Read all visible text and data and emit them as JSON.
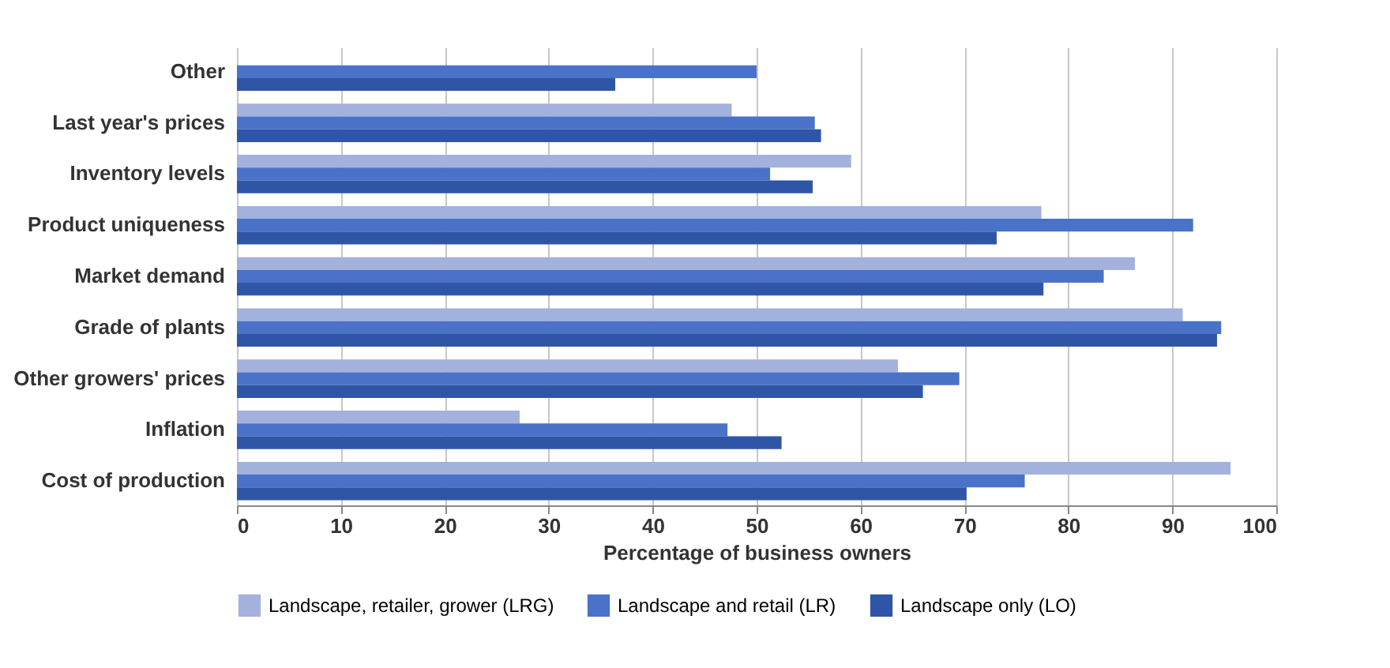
{
  "chart_data": {
    "type": "bar",
    "orientation": "horizontal",
    "xlabel": "Percentage of business owners",
    "categories": [
      "Other",
      "Last year's prices",
      "Inventory levels",
      "Product uniqueness",
      "Market demand",
      "Grade of plants",
      "Other growers' prices",
      "Inflation",
      "Cost of production"
    ],
    "series": [
      {
        "name": "Landscape, retailer, grower (LRG)",
        "color": "#a3b1dd",
        "values": [
          null,
          47.6,
          59.1,
          77.4,
          86.4,
          91.0,
          63.6,
          27.2,
          95.6
        ]
      },
      {
        "name": "Landscape and retail (LR)",
        "color": "#4a72c8",
        "values": [
          50.0,
          55.6,
          51.3,
          92.0,
          83.4,
          94.7,
          69.5,
          47.2,
          75.8
        ]
      },
      {
        "name": "Landscape only (LO)",
        "color": "#2f56a6",
        "values": [
          36.4,
          56.2,
          55.4,
          73.1,
          77.6,
          94.3,
          66.0,
          52.4,
          70.2
        ]
      }
    ],
    "xlim": [
      0,
      100
    ],
    "xticks": [
      0,
      10,
      20,
      30,
      40,
      50,
      60,
      70,
      80,
      90,
      100
    ],
    "grid": "x",
    "legend": "bottom"
  }
}
